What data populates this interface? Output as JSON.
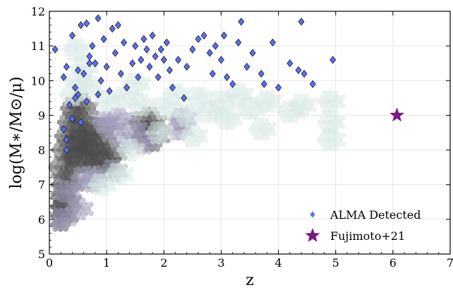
{
  "chart_data": {
    "type": "scatter",
    "xlabel": "z",
    "ylabel": "log(M∗/M⊙/μ)",
    "xlim": [
      0,
      7
    ],
    "ylim": [
      5,
      12
    ],
    "x_ticks": [
      "0",
      "1",
      "2",
      "3",
      "4",
      "5",
      "6",
      "7"
    ],
    "y_ticks": [
      "5",
      "6",
      "7",
      "8",
      "9",
      "10",
      "11",
      "12"
    ],
    "grid": true,
    "legend_position": "bottom-right",
    "legend": [
      "ALMA Detected",
      "Fujimoto+21"
    ],
    "colors": {
      "alma_fill": "#5b6fe8",
      "alma_edge": "#1b1b3a",
      "star": "#7b1a80",
      "hex_light": "#d8e9e6",
      "hex_mid": "#9d9ab8",
      "hex_dark": "#4a4a4a"
    },
    "background_density": [
      {
        "x": 0.15,
        "y": 6.1,
        "d": 3
      },
      {
        "x": 0.2,
        "y": 6.5,
        "d": 3
      },
      {
        "x": 0.25,
        "y": 7.0,
        "d": 3
      },
      {
        "x": 0.3,
        "y": 7.5,
        "d": 3
      },
      {
        "x": 0.35,
        "y": 8.0,
        "d": 3
      },
      {
        "x": 0.4,
        "y": 8.4,
        "d": 3
      },
      {
        "x": 0.45,
        "y": 8.8,
        "d": 3
      },
      {
        "x": 0.5,
        "y": 9.2,
        "d": 3
      },
      {
        "x": 0.55,
        "y": 7.8,
        "d": 3
      },
      {
        "x": 0.6,
        "y": 8.3,
        "d": 3
      },
      {
        "x": 0.7,
        "y": 8.0,
        "d": 3
      },
      {
        "x": 0.8,
        "y": 8.5,
        "d": 3
      },
      {
        "x": 0.9,
        "y": 7.6,
        "d": 3
      },
      {
        "x": 1.0,
        "y": 7.9,
        "d": 3
      },
      {
        "x": 0.2,
        "y": 6.0,
        "d": 2
      },
      {
        "x": 0.3,
        "y": 6.8,
        "d": 2
      },
      {
        "x": 0.5,
        "y": 6.3,
        "d": 2
      },
      {
        "x": 0.6,
        "y": 7.2,
        "d": 2
      },
      {
        "x": 0.75,
        "y": 7.1,
        "d": 2
      },
      {
        "x": 0.95,
        "y": 8.8,
        "d": 2
      },
      {
        "x": 1.05,
        "y": 8.6,
        "d": 2
      },
      {
        "x": 1.1,
        "y": 7.4,
        "d": 2
      },
      {
        "x": 1.2,
        "y": 8.9,
        "d": 2
      },
      {
        "x": 1.3,
        "y": 8.2,
        "d": 2
      },
      {
        "x": 1.7,
        "y": 8.8,
        "d": 3
      },
      {
        "x": 1.75,
        "y": 8.4,
        "d": 3
      },
      {
        "x": 1.65,
        "y": 8.2,
        "d": 2
      },
      {
        "x": 1.45,
        "y": 8.6,
        "d": 2
      },
      {
        "x": 2.25,
        "y": 8.6,
        "d": 2
      },
      {
        "x": 2.3,
        "y": 8.9,
        "d": 2
      },
      {
        "x": 0.4,
        "y": 9.6,
        "d": 1
      },
      {
        "x": 0.5,
        "y": 10.0,
        "d": 1
      },
      {
        "x": 0.6,
        "y": 10.4,
        "d": 1
      },
      {
        "x": 0.45,
        "y": 10.9,
        "d": 1
      },
      {
        "x": 0.7,
        "y": 9.8,
        "d": 1
      },
      {
        "x": 1.0,
        "y": 9.4,
        "d": 1
      },
      {
        "x": 1.3,
        "y": 9.5,
        "d": 1
      },
      {
        "x": 1.5,
        "y": 9.9,
        "d": 1
      },
      {
        "x": 1.6,
        "y": 9.3,
        "d": 1
      },
      {
        "x": 2.0,
        "y": 9.2,
        "d": 1
      },
      {
        "x": 2.2,
        "y": 9.6,
        "d": 1
      },
      {
        "x": 2.4,
        "y": 9.0,
        "d": 1
      },
      {
        "x": 2.6,
        "y": 9.5,
        "d": 1
      },
      {
        "x": 2.8,
        "y": 9.1,
        "d": 1
      },
      {
        "x": 3.0,
        "y": 9.4,
        "d": 1
      },
      {
        "x": 3.1,
        "y": 8.9,
        "d": 1
      },
      {
        "x": 3.3,
        "y": 9.6,
        "d": 1
      },
      {
        "x": 3.5,
        "y": 9.2,
        "d": 1
      },
      {
        "x": 3.8,
        "y": 9.4,
        "d": 1
      },
      {
        "x": 4.2,
        "y": 9.1,
        "d": 1
      },
      {
        "x": 4.4,
        "y": 9.3,
        "d": 1
      },
      {
        "x": 4.9,
        "y": 8.8,
        "d": 1
      },
      {
        "x": 4.9,
        "y": 8.3,
        "d": 1
      },
      {
        "x": 4.9,
        "y": 9.4,
        "d": 1
      },
      {
        "x": 1.4,
        "y": 8.0,
        "d": 1
      },
      {
        "x": 1.9,
        "y": 8.5,
        "d": 1
      },
      {
        "x": 2.5,
        "y": 8.4,
        "d": 1
      },
      {
        "x": 0.9,
        "y": 7.0,
        "d": 1
      },
      {
        "x": 1.2,
        "y": 7.3,
        "d": 1
      },
      {
        "x": 3.7,
        "y": 8.6,
        "d": 1
      }
    ],
    "series": [
      {
        "name": "ALMA Detected",
        "marker": "diamond",
        "points": [
          {
            "x": 0.1,
            "y": 10.9
          },
          {
            "x": 0.25,
            "y": 10.1
          },
          {
            "x": 0.3,
            "y": 10.4
          },
          {
            "x": 0.4,
            "y": 11.3
          },
          {
            "x": 0.45,
            "y": 9.8
          },
          {
            "x": 0.5,
            "y": 9.6
          },
          {
            "x": 0.55,
            "y": 11.6
          },
          {
            "x": 0.6,
            "y": 10.2
          },
          {
            "x": 0.65,
            "y": 11.65
          },
          {
            "x": 0.7,
            "y": 10.7
          },
          {
            "x": 0.75,
            "y": 11.0
          },
          {
            "x": 0.8,
            "y": 10.5
          },
          {
            "x": 0.85,
            "y": 11.8
          },
          {
            "x": 0.9,
            "y": 10.0
          },
          {
            "x": 0.95,
            "y": 11.2
          },
          {
            "x": 1.0,
            "y": 10.4
          },
          {
            "x": 1.05,
            "y": 9.7
          },
          {
            "x": 1.1,
            "y": 11.5
          },
          {
            "x": 1.15,
            "y": 10.8
          },
          {
            "x": 1.2,
            "y": 11.6
          },
          {
            "x": 1.25,
            "y": 10.2
          },
          {
            "x": 1.3,
            "y": 11.1
          },
          {
            "x": 1.35,
            "y": 9.8
          },
          {
            "x": 1.45,
            "y": 10.5
          },
          {
            "x": 1.5,
            "y": 11.0
          },
          {
            "x": 1.55,
            "y": 10.1
          },
          {
            "x": 1.6,
            "y": 10.6
          },
          {
            "x": 1.65,
            "y": 11.2
          },
          {
            "x": 1.7,
            "y": 10.9
          },
          {
            "x": 1.75,
            "y": 10.4
          },
          {
            "x": 1.8,
            "y": 11.3
          },
          {
            "x": 1.85,
            "y": 10.7
          },
          {
            "x": 1.9,
            "y": 10.1
          },
          {
            "x": 1.95,
            "y": 10.9
          },
          {
            "x": 2.0,
            "y": 10.6
          },
          {
            "x": 2.05,
            "y": 11.1
          },
          {
            "x": 2.1,
            "y": 10.3
          },
          {
            "x": 2.15,
            "y": 9.8
          },
          {
            "x": 2.25,
            "y": 10.6
          },
          {
            "x": 2.35,
            "y": 9.5
          },
          {
            "x": 2.4,
            "y": 10.4
          },
          {
            "x": 2.5,
            "y": 10.9
          },
          {
            "x": 2.6,
            "y": 11.2
          },
          {
            "x": 2.7,
            "y": 11.3
          },
          {
            "x": 2.8,
            "y": 10.8
          },
          {
            "x": 2.85,
            "y": 10.2
          },
          {
            "x": 2.9,
            "y": 11.0
          },
          {
            "x": 3.0,
            "y": 10.6
          },
          {
            "x": 3.05,
            "y": 11.3
          },
          {
            "x": 3.1,
            "y": 10.1
          },
          {
            "x": 3.2,
            "y": 9.9
          },
          {
            "x": 3.3,
            "y": 11.1
          },
          {
            "x": 3.35,
            "y": 11.7
          },
          {
            "x": 3.45,
            "y": 10.4
          },
          {
            "x": 3.55,
            "y": 10.8
          },
          {
            "x": 3.7,
            "y": 10.2
          },
          {
            "x": 3.75,
            "y": 9.9
          },
          {
            "x": 3.9,
            "y": 11.1
          },
          {
            "x": 4.0,
            "y": 9.8
          },
          {
            "x": 4.2,
            "y": 10.5
          },
          {
            "x": 4.35,
            "y": 10.3
          },
          {
            "x": 4.4,
            "y": 11.7
          },
          {
            "x": 4.45,
            "y": 10.2
          },
          {
            "x": 4.6,
            "y": 9.9
          },
          {
            "x": 4.95,
            "y": 10.6
          },
          {
            "x": 0.25,
            "y": 8.6
          },
          {
            "x": 0.3,
            "y": 8.0
          },
          {
            "x": 0.35,
            "y": 9.3
          },
          {
            "x": 0.4,
            "y": 8.9
          },
          {
            "x": 0.45,
            "y": 9.5
          },
          {
            "x": 0.55,
            "y": 8.8
          },
          {
            "x": 0.65,
            "y": 9.4
          },
          {
            "x": 0.85,
            "y": 9.6
          },
          {
            "x": 0.5,
            "y": 10.3
          },
          {
            "x": 0.7,
            "y": 10.5
          },
          {
            "x": 0.3,
            "y": 8.3
          }
        ]
      },
      {
        "name": "Fujimoto+21",
        "marker": "star",
        "points": [
          {
            "x": 6.07,
            "y": 9.0
          }
        ]
      }
    ]
  }
}
